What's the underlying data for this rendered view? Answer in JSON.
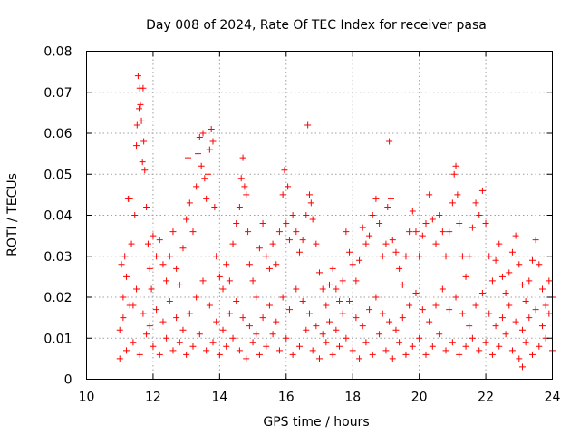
{
  "chart_data": {
    "type": "scatter",
    "title": "Day 008 of 2024, Rate Of TEC Index for receiver pasa",
    "xlabel": "GPS time / hours",
    "ylabel": "ROTI / TECUs",
    "xlim": [
      10,
      24
    ],
    "ylim": [
      0,
      0.08
    ],
    "xticks": [
      10,
      12,
      14,
      16,
      18,
      20,
      22,
      24
    ],
    "xtick_labels": [
      "10",
      "12",
      "14",
      "16",
      "18",
      "20",
      "22",
      "24"
    ],
    "yticks": [
      0,
      0.01,
      0.02,
      0.03,
      0.04,
      0.05,
      0.06,
      0.07,
      0.08
    ],
    "ytick_labels": [
      "0",
      "0.01",
      "0.02",
      "0.03",
      "0.04",
      "0.05",
      "0.06",
      "0.07",
      "0.08"
    ],
    "grid": true,
    "marker": "+",
    "color": "#ff0000",
    "series": [
      {
        "name": "ROTI",
        "points": [
          [
            11.0,
            0.012
          ],
          [
            11.05,
            0.028
          ],
          [
            11.1,
            0.02
          ],
          [
            11.15,
            0.03
          ],
          [
            11.2,
            0.025
          ],
          [
            11.25,
            0.044
          ],
          [
            11.3,
            0.044
          ],
          [
            11.35,
            0.033
          ],
          [
            11.4,
            0.018
          ],
          [
            11.45,
            0.04
          ],
          [
            11.5,
            0.057
          ],
          [
            11.52,
            0.062
          ],
          [
            11.55,
            0.074
          ],
          [
            11.58,
            0.066
          ],
          [
            11.6,
            0.071
          ],
          [
            11.62,
            0.067
          ],
          [
            11.65,
            0.063
          ],
          [
            11.68,
            0.053
          ],
          [
            11.7,
            0.071
          ],
          [
            11.72,
            0.058
          ],
          [
            11.75,
            0.051
          ],
          [
            11.8,
            0.042
          ],
          [
            11.85,
            0.033
          ],
          [
            11.9,
            0.027
          ],
          [
            11.95,
            0.022
          ],
          [
            12.0,
            0.035
          ],
          [
            12.1,
            0.03
          ],
          [
            12.2,
            0.034
          ],
          [
            12.3,
            0.028
          ],
          [
            12.4,
            0.024
          ],
          [
            12.5,
            0.03
          ],
          [
            12.6,
            0.036
          ],
          [
            12.7,
            0.027
          ],
          [
            12.8,
            0.023
          ],
          [
            12.9,
            0.032
          ],
          [
            13.0,
            0.039
          ],
          [
            13.05,
            0.054
          ],
          [
            13.1,
            0.043
          ],
          [
            13.2,
            0.036
          ],
          [
            13.3,
            0.047
          ],
          [
            13.35,
            0.055
          ],
          [
            13.4,
            0.059
          ],
          [
            13.45,
            0.052
          ],
          [
            13.5,
            0.06
          ],
          [
            13.55,
            0.049
          ],
          [
            13.6,
            0.044
          ],
          [
            13.65,
            0.05
          ],
          [
            13.7,
            0.056
          ],
          [
            13.75,
            0.061
          ],
          [
            13.8,
            0.058
          ],
          [
            13.85,
            0.042
          ],
          [
            13.9,
            0.03
          ],
          [
            14.0,
            0.025
          ],
          [
            14.1,
            0.022
          ],
          [
            14.2,
            0.028
          ],
          [
            14.3,
            0.024
          ],
          [
            14.4,
            0.033
          ],
          [
            14.5,
            0.038
          ],
          [
            14.6,
            0.042
          ],
          [
            14.65,
            0.049
          ],
          [
            14.7,
            0.054
          ],
          [
            14.75,
            0.047
          ],
          [
            14.8,
            0.045
          ],
          [
            14.85,
            0.036
          ],
          [
            14.9,
            0.028
          ],
          [
            15.0,
            0.024
          ],
          [
            15.1,
            0.02
          ],
          [
            15.2,
            0.032
          ],
          [
            15.3,
            0.038
          ],
          [
            15.4,
            0.03
          ],
          [
            15.5,
            0.027
          ],
          [
            15.6,
            0.033
          ],
          [
            15.7,
            0.028
          ],
          [
            15.8,
            0.036
          ],
          [
            15.9,
            0.045
          ],
          [
            15.95,
            0.051
          ],
          [
            16.0,
            0.038
          ],
          [
            16.05,
            0.047
          ],
          [
            16.1,
            0.034
          ],
          [
            16.2,
            0.04
          ],
          [
            16.3,
            0.036
          ],
          [
            16.4,
            0.031
          ],
          [
            16.5,
            0.034
          ],
          [
            16.6,
            0.04
          ],
          [
            16.65,
            0.062
          ],
          [
            16.7,
            0.045
          ],
          [
            16.75,
            0.043
          ],
          [
            16.8,
            0.039
          ],
          [
            16.9,
            0.033
          ],
          [
            17.0,
            0.026
          ],
          [
            17.1,
            0.022
          ],
          [
            17.2,
            0.018
          ],
          [
            17.3,
            0.023
          ],
          [
            17.4,
            0.027
          ],
          [
            17.5,
            0.022
          ],
          [
            17.6,
            0.019
          ],
          [
            17.7,
            0.024
          ],
          [
            17.8,
            0.036
          ],
          [
            17.9,
            0.031
          ],
          [
            18.0,
            0.028
          ],
          [
            18.1,
            0.024
          ],
          [
            18.2,
            0.029
          ],
          [
            18.3,
            0.037
          ],
          [
            18.4,
            0.033
          ],
          [
            18.5,
            0.035
          ],
          [
            18.6,
            0.04
          ],
          [
            18.7,
            0.044
          ],
          [
            18.8,
            0.038
          ],
          [
            18.9,
            0.03
          ],
          [
            19.0,
            0.033
          ],
          [
            19.05,
            0.042
          ],
          [
            19.1,
            0.058
          ],
          [
            19.15,
            0.044
          ],
          [
            19.2,
            0.034
          ],
          [
            19.3,
            0.031
          ],
          [
            19.4,
            0.027
          ],
          [
            19.5,
            0.023
          ],
          [
            19.6,
            0.03
          ],
          [
            19.7,
            0.036
          ],
          [
            19.8,
            0.041
          ],
          [
            19.9,
            0.036
          ],
          [
            20.0,
            0.03
          ],
          [
            20.1,
            0.035
          ],
          [
            20.2,
            0.038
          ],
          [
            20.3,
            0.045
          ],
          [
            20.4,
            0.039
          ],
          [
            20.5,
            0.033
          ],
          [
            20.6,
            0.04
          ],
          [
            20.7,
            0.036
          ],
          [
            20.8,
            0.03
          ],
          [
            20.9,
            0.036
          ],
          [
            21.0,
            0.043
          ],
          [
            21.05,
            0.05
          ],
          [
            21.1,
            0.052
          ],
          [
            21.15,
            0.045
          ],
          [
            21.2,
            0.038
          ],
          [
            21.3,
            0.03
          ],
          [
            21.4,
            0.025
          ],
          [
            21.5,
            0.03
          ],
          [
            21.6,
            0.037
          ],
          [
            21.7,
            0.043
          ],
          [
            21.8,
            0.04
          ],
          [
            21.9,
            0.046
          ],
          [
            22.0,
            0.038
          ],
          [
            22.1,
            0.03
          ],
          [
            22.2,
            0.024
          ],
          [
            22.3,
            0.029
          ],
          [
            22.4,
            0.033
          ],
          [
            22.5,
            0.025
          ],
          [
            22.6,
            0.021
          ],
          [
            22.7,
            0.026
          ],
          [
            22.8,
            0.031
          ],
          [
            22.9,
            0.035
          ],
          [
            23.0,
            0.028
          ],
          [
            23.1,
            0.023
          ],
          [
            23.2,
            0.019
          ],
          [
            23.3,
            0.024
          ],
          [
            23.4,
            0.029
          ],
          [
            23.5,
            0.034
          ],
          [
            23.6,
            0.028
          ],
          [
            23.7,
            0.022
          ],
          [
            23.8,
            0.018
          ],
          [
            23.9,
            0.024
          ],
          [
            24.0,
            0.02
          ],
          [
            11.0,
            0.005
          ],
          [
            11.2,
            0.007
          ],
          [
            11.4,
            0.009
          ],
          [
            11.6,
            0.006
          ],
          [
            11.8,
            0.011
          ],
          [
            12.0,
            0.008
          ],
          [
            12.2,
            0.006
          ],
          [
            12.4,
            0.01
          ],
          [
            12.6,
            0.007
          ],
          [
            12.8,
            0.009
          ],
          [
            13.0,
            0.006
          ],
          [
            13.2,
            0.008
          ],
          [
            13.4,
            0.011
          ],
          [
            13.6,
            0.007
          ],
          [
            13.8,
            0.009
          ],
          [
            14.0,
            0.006
          ],
          [
            14.2,
            0.008
          ],
          [
            14.4,
            0.01
          ],
          [
            14.6,
            0.007
          ],
          [
            14.8,
            0.005
          ],
          [
            15.0,
            0.009
          ],
          [
            15.2,
            0.006
          ],
          [
            15.4,
            0.008
          ],
          [
            15.6,
            0.011
          ],
          [
            15.8,
            0.007
          ],
          [
            16.0,
            0.01
          ],
          [
            16.2,
            0.006
          ],
          [
            16.4,
            0.008
          ],
          [
            16.6,
            0.012
          ],
          [
            16.8,
            0.007
          ],
          [
            17.0,
            0.005
          ],
          [
            17.2,
            0.009
          ],
          [
            17.4,
            0.006
          ],
          [
            17.6,
            0.008
          ],
          [
            17.8,
            0.01
          ],
          [
            18.0,
            0.007
          ],
          [
            18.2,
            0.005
          ],
          [
            18.4,
            0.009
          ],
          [
            18.6,
            0.006
          ],
          [
            18.8,
            0.011
          ],
          [
            19.0,
            0.007
          ],
          [
            19.2,
            0.005
          ],
          [
            19.4,
            0.009
          ],
          [
            19.6,
            0.006
          ],
          [
            19.8,
            0.008
          ],
          [
            20.0,
            0.01
          ],
          [
            20.2,
            0.006
          ],
          [
            20.4,
            0.008
          ],
          [
            20.6,
            0.011
          ],
          [
            20.8,
            0.007
          ],
          [
            21.0,
            0.009
          ],
          [
            21.2,
            0.006
          ],
          [
            21.4,
            0.008
          ],
          [
            21.6,
            0.01
          ],
          [
            21.8,
            0.007
          ],
          [
            22.0,
            0.009
          ],
          [
            22.2,
            0.006
          ],
          [
            22.4,
            0.008
          ],
          [
            22.6,
            0.011
          ],
          [
            22.8,
            0.007
          ],
          [
            23.0,
            0.005
          ],
          [
            23.1,
            0.003
          ],
          [
            23.2,
            0.009
          ],
          [
            23.4,
            0.006
          ],
          [
            23.6,
            0.008
          ],
          [
            23.8,
            0.01
          ],
          [
            24.0,
            0.007
          ],
          [
            11.1,
            0.015
          ],
          [
            11.3,
            0.018
          ],
          [
            11.5,
            0.022
          ],
          [
            11.7,
            0.016
          ],
          [
            11.9,
            0.013
          ],
          [
            12.1,
            0.017
          ],
          [
            12.3,
            0.014
          ],
          [
            12.5,
            0.019
          ],
          [
            12.7,
            0.015
          ],
          [
            12.9,
            0.012
          ],
          [
            13.1,
            0.016
          ],
          [
            13.3,
            0.02
          ],
          [
            13.5,
            0.024
          ],
          [
            13.7,
            0.018
          ],
          [
            13.9,
            0.014
          ],
          [
            14.1,
            0.012
          ],
          [
            14.3,
            0.016
          ],
          [
            14.5,
            0.019
          ],
          [
            14.7,
            0.015
          ],
          [
            14.9,
            0.013
          ],
          [
            15.1,
            0.011
          ],
          [
            15.3,
            0.015
          ],
          [
            15.5,
            0.018
          ],
          [
            15.7,
            0.014
          ],
          [
            15.9,
            0.02
          ],
          [
            16.1,
            0.017
          ],
          [
            16.3,
            0.022
          ],
          [
            16.5,
            0.019
          ],
          [
            16.7,
            0.016
          ],
          [
            16.9,
            0.013
          ],
          [
            17.1,
            0.011
          ],
          [
            17.3,
            0.014
          ],
          [
            17.5,
            0.012
          ],
          [
            17.7,
            0.016
          ],
          [
            17.9,
            0.019
          ],
          [
            18.1,
            0.015
          ],
          [
            18.3,
            0.013
          ],
          [
            18.5,
            0.017
          ],
          [
            18.7,
            0.02
          ],
          [
            18.9,
            0.016
          ],
          [
            19.1,
            0.014
          ],
          [
            19.3,
            0.012
          ],
          [
            19.5,
            0.015
          ],
          [
            19.7,
            0.018
          ],
          [
            19.9,
            0.021
          ],
          [
            20.1,
            0.017
          ],
          [
            20.3,
            0.014
          ],
          [
            20.5,
            0.018
          ],
          [
            20.7,
            0.022
          ],
          [
            20.9,
            0.017
          ],
          [
            21.1,
            0.02
          ],
          [
            21.3,
            0.016
          ],
          [
            21.5,
            0.013
          ],
          [
            21.7,
            0.018
          ],
          [
            21.9,
            0.021
          ],
          [
            22.1,
            0.016
          ],
          [
            22.3,
            0.013
          ],
          [
            22.5,
            0.015
          ],
          [
            22.7,
            0.018
          ],
          [
            22.9,
            0.014
          ],
          [
            23.1,
            0.012
          ],
          [
            23.3,
            0.015
          ],
          [
            23.5,
            0.017
          ],
          [
            23.7,
            0.013
          ],
          [
            23.9,
            0.016
          ]
        ]
      }
    ]
  }
}
